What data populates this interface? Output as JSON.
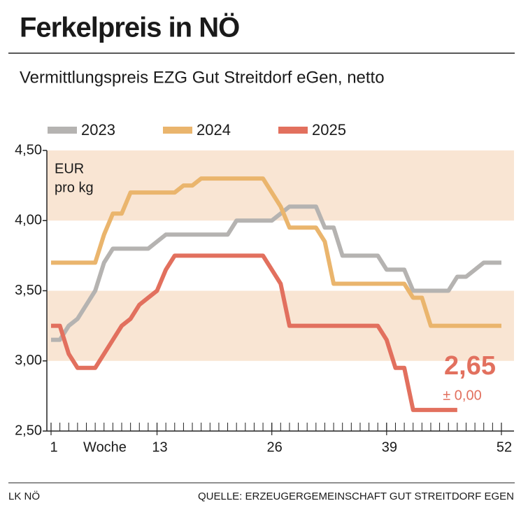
{
  "chart_data": {
    "type": "line",
    "title": "Ferkelpreis in NÖ",
    "subtitle": "Vermittlungspreis EZG Gut Streitdorf eGen, netto",
    "unit_label": [
      "EUR",
      "pro kg"
    ],
    "x_label": "Woche",
    "x": [
      1,
      2,
      3,
      4,
      5,
      6,
      7,
      8,
      9,
      10,
      11,
      12,
      13,
      14,
      15,
      16,
      17,
      18,
      19,
      20,
      21,
      22,
      23,
      24,
      25,
      26,
      27,
      28,
      29,
      30,
      31,
      32,
      33,
      34,
      35,
      36,
      37,
      38,
      39,
      40,
      41,
      42,
      43,
      44,
      45,
      46,
      47,
      48,
      49,
      50,
      51,
      52
    ],
    "series": [
      {
        "name": "2023",
        "color": "#b5b3b1",
        "values": [
          3.15,
          3.15,
          3.25,
          3.3,
          3.4,
          3.5,
          3.7,
          3.8,
          3.8,
          3.8,
          3.8,
          3.8,
          3.85,
          3.9,
          3.9,
          3.9,
          3.9,
          3.9,
          3.9,
          3.9,
          3.9,
          4.0,
          4.0,
          4.0,
          4.0,
          4.0,
          4.05,
          4.1,
          4.1,
          4.1,
          4.1,
          3.95,
          3.95,
          3.75,
          3.75,
          3.75,
          3.75,
          3.75,
          3.65,
          3.65,
          3.65,
          3.5,
          3.5,
          3.5,
          3.5,
          3.5,
          3.6,
          3.6,
          3.65,
          3.7,
          3.7,
          3.7
        ]
      },
      {
        "name": "2024",
        "color": "#eab56d",
        "values": [
          3.7,
          3.7,
          3.7,
          3.7,
          3.7,
          3.7,
          3.9,
          4.05,
          4.05,
          4.2,
          4.2,
          4.2,
          4.2,
          4.2,
          4.2,
          4.25,
          4.25,
          4.3,
          4.3,
          4.3,
          4.3,
          4.3,
          4.3,
          4.3,
          4.3,
          4.2,
          4.1,
          3.95,
          3.95,
          3.95,
          3.95,
          3.85,
          3.55,
          3.55,
          3.55,
          3.55,
          3.55,
          3.55,
          3.55,
          3.55,
          3.55,
          3.45,
          3.45,
          3.25,
          3.25,
          3.25,
          3.25,
          3.25,
          3.25,
          3.25,
          3.25,
          3.25
        ]
      },
      {
        "name": "2025",
        "color": "#e2705e",
        "values": [
          3.25,
          3.25,
          3.05,
          2.95,
          2.95,
          2.95,
          3.05,
          3.15,
          3.25,
          3.3,
          3.4,
          3.45,
          3.5,
          3.65,
          3.75,
          3.75,
          3.75,
          3.75,
          3.75,
          3.75,
          3.75,
          3.75,
          3.75,
          3.75,
          3.75,
          3.65,
          3.55,
          3.25,
          3.25,
          3.25,
          3.25,
          3.25,
          3.25,
          3.25,
          3.25,
          3.25,
          3.25,
          3.25,
          3.15,
          2.95,
          2.95,
          2.65,
          2.65,
          2.65,
          2.65,
          2.65,
          2.65,
          null,
          null,
          null,
          null,
          null
        ]
      }
    ],
    "xlim": [
      1,
      52
    ],
    "xticks": [
      1,
      13,
      26,
      39,
      52
    ],
    "ylim": [
      2.5,
      4.5
    ],
    "yticks": [
      {
        "value": 2.5,
        "label": "2,50"
      },
      {
        "value": 3.0,
        "label": "3,00"
      },
      {
        "value": 3.5,
        "label": "3,50"
      },
      {
        "value": 4.0,
        "label": "4,00"
      },
      {
        "value": 4.5,
        "label": "4,50"
      }
    ],
    "bands": [
      [
        3.0,
        3.5
      ],
      [
        4.0,
        4.5
      ]
    ],
    "band_color": "#f9e5d3",
    "annotations": [
      "2,65",
      "± 0,00"
    ],
    "credit": "LK NÖ",
    "source": "QUELLE: ERZEUGERGEMEINSCHAFT GUT STREITDORF EGEN"
  }
}
